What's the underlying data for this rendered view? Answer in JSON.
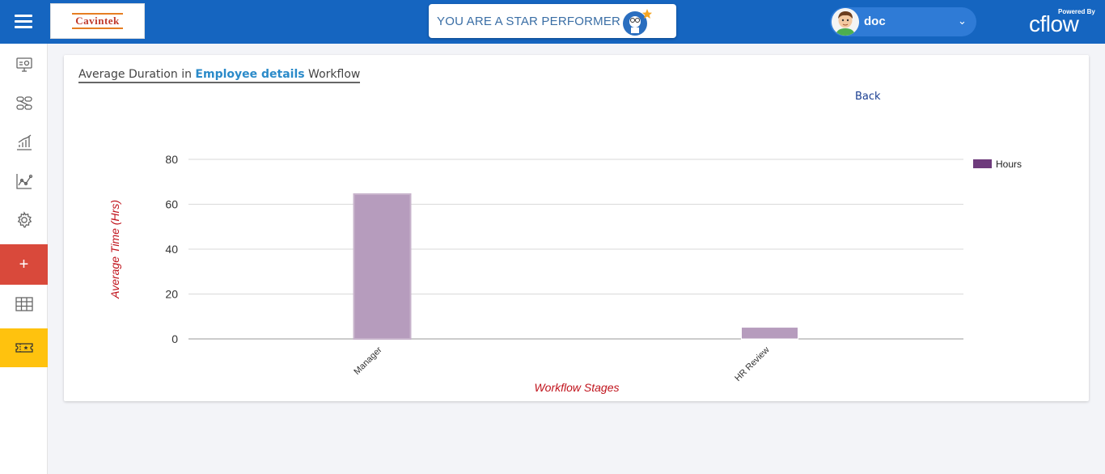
{
  "topbar": {
    "menu_icon": "hamburger-icon",
    "logo_text": "Cavintek",
    "banner_text": "YOU ARE A STAR PERFORMER",
    "user_name": "doc",
    "powered_by": "Powered By",
    "brand": "cflow"
  },
  "sidebar": {
    "items": [
      {
        "icon": "dashboard-monitor-icon"
      },
      {
        "icon": "workflow-icon"
      },
      {
        "icon": "bar-chart-icon"
      },
      {
        "icon": "line-chart-icon"
      },
      {
        "icon": "gear-icon"
      },
      {
        "icon": "plus-icon",
        "label": "+"
      },
      {
        "icon": "table-grid-icon"
      },
      {
        "icon": "ticket-icon"
      }
    ]
  },
  "card": {
    "title_prefix": "Average Duration in ",
    "title_workflow": "Employee details",
    "title_suffix": " Workflow",
    "back_label": "Back"
  },
  "chart_data": {
    "type": "bar",
    "categories": [
      "Manager",
      "HR Review"
    ],
    "series": [
      {
        "name": "Hours",
        "values": [
          64.5,
          5.2
        ],
        "color": "#b69cbd",
        "legend_color": "#6e3b7c"
      }
    ],
    "xlabel": "Workflow Stages",
    "ylabel": "Average Time (Hrs)",
    "ylim": [
      0,
      80
    ],
    "yticks": [
      0,
      20,
      40,
      60,
      80
    ],
    "grid": true,
    "legend": "top-right"
  }
}
